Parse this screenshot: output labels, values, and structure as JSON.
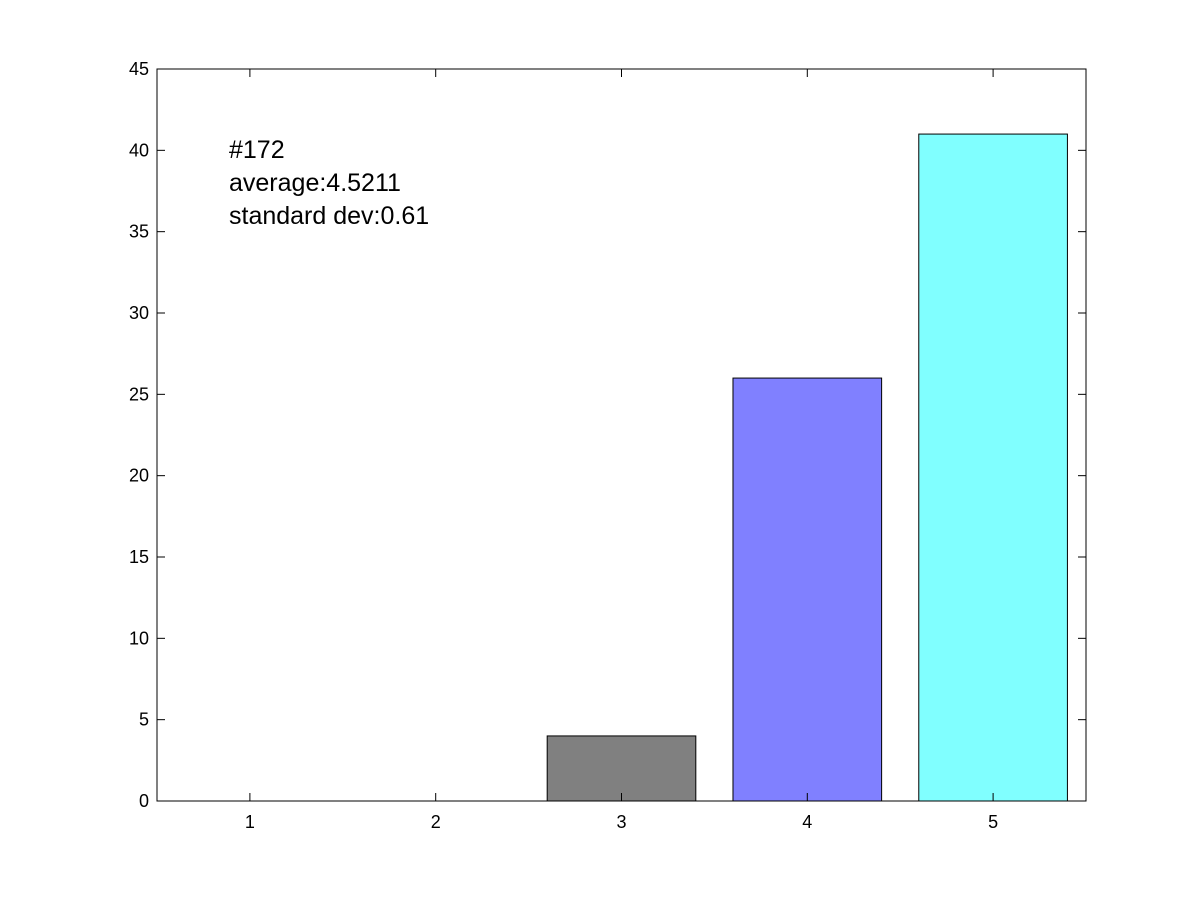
{
  "chart_data": {
    "type": "bar",
    "categories": [
      "1",
      "2",
      "3",
      "4",
      "5"
    ],
    "x": [
      1,
      2,
      3,
      4,
      5
    ],
    "values": [
      0,
      0,
      4,
      26,
      41
    ],
    "bar_colors": [
      "#808080",
      "#808080",
      "#808080",
      "#8080ff",
      "#80ffff"
    ],
    "xlim": [
      0.5,
      5.5
    ],
    "ylim": [
      0,
      45
    ],
    "yticks": [
      0,
      5,
      10,
      15,
      20,
      25,
      30,
      35,
      40,
      45
    ],
    "ytick_labels": [
      "0",
      "5",
      "10",
      "15",
      "20",
      "25",
      "30",
      "35",
      "40",
      "45"
    ],
    "xticks": [
      1,
      2,
      3,
      4,
      5
    ],
    "xtick_labels": [
      "1",
      "2",
      "3",
      "4",
      "5"
    ],
    "grid": false,
    "annotations": [
      "#172",
      "average:4.5211",
      "standard dev:0.61"
    ]
  }
}
